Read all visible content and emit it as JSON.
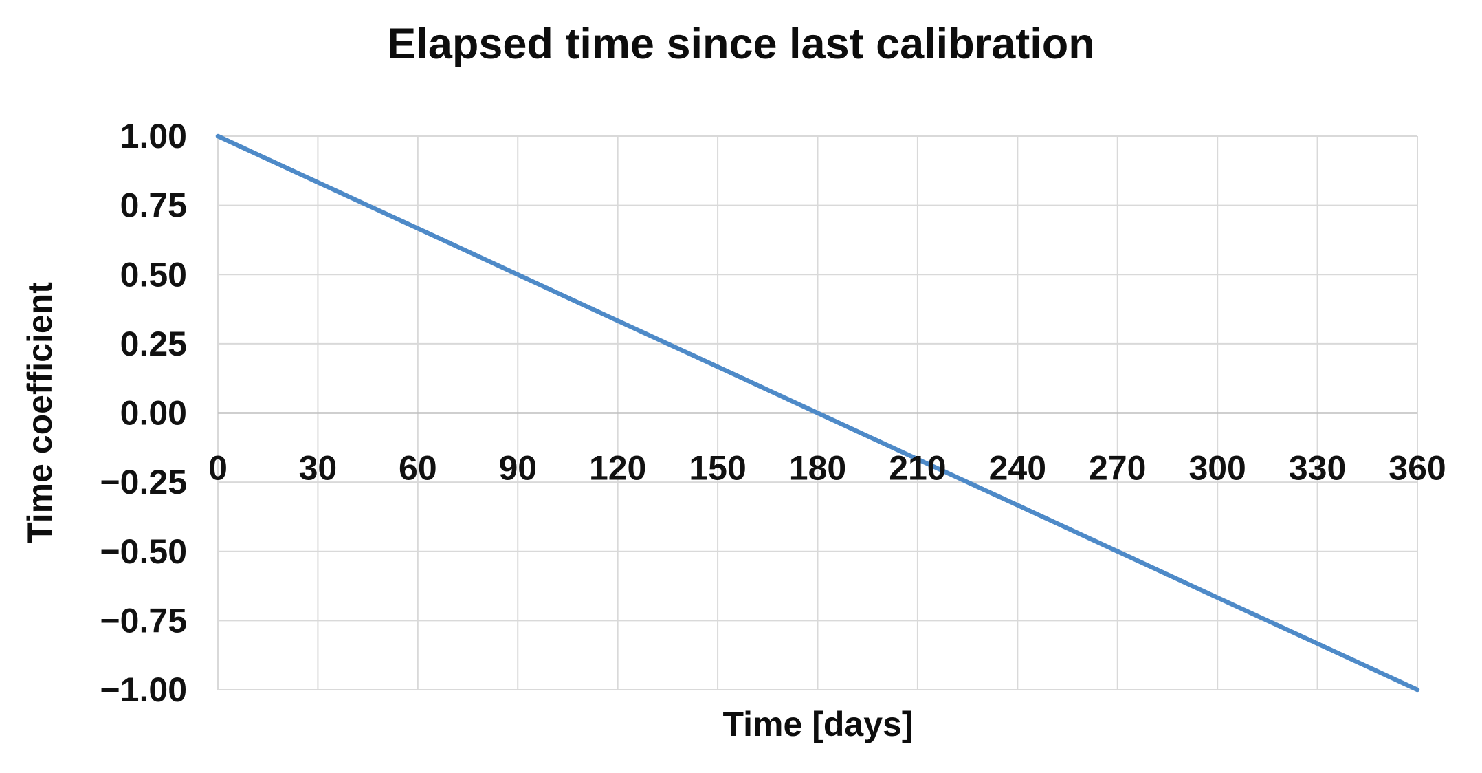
{
  "chart_data": {
    "type": "line",
    "title": "Elapsed time since last calibration",
    "xlabel": "Time [days]",
    "ylabel": "Time coefficient",
    "x": [
      0,
      30,
      60,
      90,
      120,
      150,
      180,
      210,
      240,
      270,
      300,
      330,
      360
    ],
    "series": [
      {
        "name": "Time coefficient",
        "values": [
          1.0,
          0.833,
          0.667,
          0.5,
          0.333,
          0.167,
          0.0,
          -0.167,
          -0.333,
          -0.5,
          -0.667,
          -0.833,
          -1.0
        ]
      }
    ],
    "xlim": [
      0,
      360
    ],
    "ylim": [
      -1,
      1
    ],
    "x_tick_labels": [
      "0",
      "30",
      "60",
      "90",
      "120",
      "150",
      "180",
      "210",
      "240",
      "270",
      "300",
      "330",
      "360"
    ],
    "y_tick_values": [
      1,
      0.75,
      0.5,
      0.25,
      0,
      -0.25,
      -0.5,
      -0.75,
      -1
    ],
    "y_tick_labels": [
      "1.00",
      "0.75",
      "0.50",
      "0.25",
      "0.00",
      "−0.25",
      "−0.50",
      "−0.75",
      "−1.00"
    ],
    "grid": true,
    "legend_position": "none",
    "line_color": "#4E8AC8",
    "gridline_color": "#D9D9D9",
    "zero_axis_color": "#BFBFBF",
    "text_color": "#111111"
  }
}
